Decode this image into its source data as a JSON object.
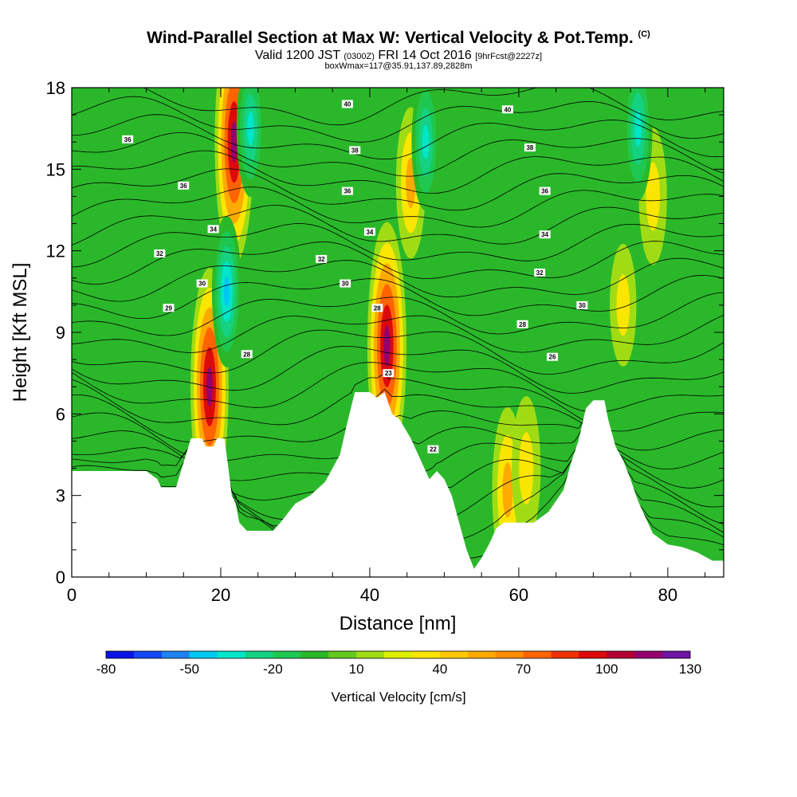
{
  "title": {
    "main": "Wind-Parallel Section at Max W: Vertical Velocity & Pot.Temp.",
    "mark": "(C)",
    "line2_a": "Valid 1200 JST",
    "line2_b": "(0300Z)",
    "line2_c": "FRI 14 Oct 2016",
    "line2_d": "[9hrFcst@2227z]",
    "line3": "boxWmax=117@35.91,137.89,2828m"
  },
  "colors": {
    "background_green": "#2ab82a",
    "terrain": "#ffffff",
    "contour": "#000000"
  },
  "chart_data": {
    "type": "heatmap",
    "xlabel": "Distance [nm]",
    "ylabel": "Height [Kft MSL]",
    "xlim": [
      0,
      87.5
    ],
    "ylim": [
      0,
      18
    ],
    "x_ticks": [
      "0",
      "20",
      "40",
      "60",
      "80"
    ],
    "y_ticks": [
      "0",
      "3",
      "6",
      "9",
      "12",
      "15",
      "18"
    ],
    "colorbar": {
      "label": "Vertical Velocity [cm/s]",
      "tick_labels": [
        "-80",
        "-50",
        "-20",
        "10",
        "40",
        "70",
        "100",
        "130"
      ],
      "levels": [
        -80,
        -70,
        -60,
        -50,
        -40,
        -30,
        -20,
        -10,
        0,
        10,
        20,
        30,
        40,
        50,
        60,
        70,
        80,
        90,
        100,
        110,
        120,
        130
      ],
      "colors": [
        "#0a14e6",
        "#1446f5",
        "#1e82f0",
        "#00c8f0",
        "#00e6c8",
        "#14d282",
        "#1ec850",
        "#2ab82a",
        "#64c81e",
        "#a0dc14",
        "#dcf000",
        "#fae600",
        "#ffc800",
        "#ffaa00",
        "#ff8c00",
        "#ff6400",
        "#f03200",
        "#dc0a0a",
        "#b40032",
        "#96006e",
        "#6e14a0"
      ]
    },
    "terrain_profile": [
      [
        0,
        3.9
      ],
      [
        5,
        3.9
      ],
      [
        10,
        3.9
      ],
      [
        11.5,
        3.6
      ],
      [
        12,
        3.3
      ],
      [
        14,
        3.3
      ],
      [
        15,
        4.2
      ],
      [
        16,
        5.1
      ],
      [
        17.5,
        5.1
      ],
      [
        18,
        4.8
      ],
      [
        19,
        4.8
      ],
      [
        19.5,
        5.1
      ],
      [
        20.5,
        5.1
      ],
      [
        21.5,
        3
      ],
      [
        22,
        2.7
      ],
      [
        22.5,
        2
      ],
      [
        23.5,
        1.7
      ],
      [
        27,
        1.7
      ],
      [
        28,
        2
      ],
      [
        30,
        2.7
      ],
      [
        32,
        3
      ],
      [
        34,
        3.5
      ],
      [
        36,
        4.5
      ],
      [
        37,
        5.7
      ],
      [
        38,
        6.8
      ],
      [
        40,
        6.8
      ],
      [
        41,
        6.6
      ],
      [
        42,
        6.8
      ],
      [
        43,
        6.0
      ],
      [
        44,
        5.8
      ],
      [
        45.5,
        5.1
      ],
      [
        47,
        4.2
      ],
      [
        48,
        3.6
      ],
      [
        49,
        3.9
      ],
      [
        50,
        3.6
      ],
      [
        51,
        3.0
      ],
      [
        52,
        2.0
      ],
      [
        53,
        1.0
      ],
      [
        54,
        0.3
      ],
      [
        55,
        0.7
      ],
      [
        56,
        1.2
      ],
      [
        57,
        1.8
      ],
      [
        58,
        2.0
      ],
      [
        62,
        2.0
      ],
      [
        64,
        2.4
      ],
      [
        66,
        3.2
      ],
      [
        67,
        4.2
      ],
      [
        68,
        5.0
      ],
      [
        69,
        6.2
      ],
      [
        70,
        6.5
      ],
      [
        71.5,
        6.5
      ],
      [
        72,
        5.8
      ],
      [
        73,
        4.8
      ],
      [
        74,
        4.3
      ],
      [
        75,
        3.6
      ],
      [
        76,
        2.8
      ],
      [
        77,
        2.2
      ],
      [
        78,
        1.6
      ],
      [
        80,
        1.2
      ],
      [
        82,
        1.1
      ],
      [
        84,
        0.9
      ],
      [
        86,
        0.6
      ],
      [
        87.5,
        0.6
      ]
    ],
    "updraft_cores": [
      {
        "x": 18.5,
        "y": 7.0,
        "value": 110
      },
      {
        "x": 21.8,
        "y": 16.0,
        "value": 115
      },
      {
        "x": 42.3,
        "y": 8.5,
        "value": 117
      },
      {
        "x": 45.5,
        "y": 14.5,
        "value": 50
      },
      {
        "x": 58.5,
        "y": 3.2,
        "value": 60
      },
      {
        "x": 61.0,
        "y": 4.0,
        "value": 45
      },
      {
        "x": 78.0,
        "y": 14.0,
        "value": 40
      },
      {
        "x": 74.0,
        "y": 10.0,
        "value": 30
      }
    ],
    "downdraft_cores": [
      {
        "x": 20.8,
        "y": 10.5,
        "value": -50
      },
      {
        "x": 24.0,
        "y": 16.5,
        "value": -40
      },
      {
        "x": 47.5,
        "y": 16.0,
        "value": -40
      },
      {
        "x": 76.0,
        "y": 16.5,
        "value": -45
      }
    ],
    "contour_labels": [
      {
        "x": 37.0,
        "y": 17.4,
        "text": "40"
      },
      {
        "x": 58.5,
        "y": 17.2,
        "text": "40"
      },
      {
        "x": 7.5,
        "y": 16.1,
        "text": "36"
      },
      {
        "x": 38.0,
        "y": 15.7,
        "text": "38"
      },
      {
        "x": 61.5,
        "y": 15.8,
        "text": "38"
      },
      {
        "x": 15.0,
        "y": 14.4,
        "text": "36"
      },
      {
        "x": 37.0,
        "y": 14.2,
        "text": "36"
      },
      {
        "x": 63.5,
        "y": 14.2,
        "text": "36"
      },
      {
        "x": 19.0,
        "y": 12.8,
        "text": "34"
      },
      {
        "x": 40.0,
        "y": 12.7,
        "text": "34"
      },
      {
        "x": 63.5,
        "y": 12.6,
        "text": "34"
      },
      {
        "x": 11.8,
        "y": 11.9,
        "text": "32"
      },
      {
        "x": 33.5,
        "y": 11.7,
        "text": "32"
      },
      {
        "x": 62.8,
        "y": 11.2,
        "text": "32"
      },
      {
        "x": 17.5,
        "y": 10.8,
        "text": "30"
      },
      {
        "x": 36.7,
        "y": 10.8,
        "text": "30"
      },
      {
        "x": 68.5,
        "y": 10.0,
        "text": "30"
      },
      {
        "x": 13.0,
        "y": 9.9,
        "text": "29"
      },
      {
        "x": 41.0,
        "y": 9.9,
        "text": "28"
      },
      {
        "x": 60.5,
        "y": 9.3,
        "text": "28"
      },
      {
        "x": 23.5,
        "y": 8.2,
        "text": "28"
      },
      {
        "x": 64.5,
        "y": 8.1,
        "text": "26"
      },
      {
        "x": 42.5,
        "y": 7.5,
        "text": "23"
      },
      {
        "x": 48.5,
        "y": 4.7,
        "text": "22"
      }
    ]
  }
}
